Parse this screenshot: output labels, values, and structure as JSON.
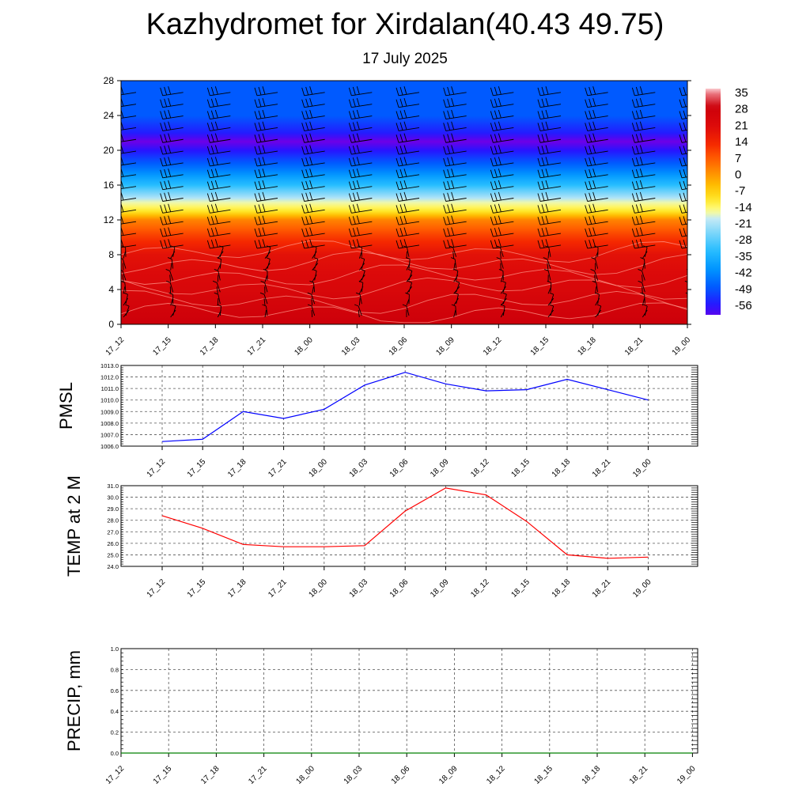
{
  "header": {
    "title": "Kazhydromet for Xirdalan(40.43 49.75)",
    "subtitle": "17 July 2025"
  },
  "chart_data": [
    {
      "type": "heatmap",
      "title": "Kazhydromet for Xirdalan(40.43 49.75)",
      "subtitle": "17 July 2025",
      "x": [
        "17_12",
        "17_15",
        "17_18",
        "17_21",
        "18_00",
        "18_03",
        "18_06",
        "18_09",
        "18_12",
        "18_15",
        "18_18",
        "18_21",
        "19_00"
      ],
      "yticks": [
        0,
        4,
        8,
        12,
        16,
        20,
        24,
        28
      ],
      "ylim": [
        0,
        28
      ],
      "value_profile": {
        "heights": [
          0,
          4,
          8,
          10,
          12,
          13,
          14,
          16,
          18,
          20,
          21,
          22,
          24,
          28
        ],
        "temps": [
          30,
          24,
          20,
          12,
          3,
          -10,
          -16,
          -32,
          -45,
          -56,
          -62,
          -55,
          -48,
          -48
        ]
      },
      "colorbar": {
        "labels": [
          "35",
          "28",
          "21",
          "14",
          "7",
          "0",
          "-7",
          "-14",
          "-21",
          "-28",
          "-35",
          "-42",
          "-49",
          "-56"
        ],
        "range": [
          -60,
          38
        ]
      },
      "wind_barbs": true
    },
    {
      "type": "line",
      "ylabel": "PMSL",
      "x": [
        "17_12",
        "17_15",
        "17_18",
        "17_21",
        "18_00",
        "18_03",
        "18_06",
        "18_09",
        "18_12",
        "18_15",
        "18_18",
        "18_21",
        "19_00"
      ],
      "values": [
        1006.4,
        1006.6,
        1009.0,
        1008.4,
        1009.2,
        1011.3,
        1012.4,
        1011.4,
        1010.8,
        1010.9,
        1011.8,
        1010.9,
        1010.0
      ],
      "ylim": [
        1006.0,
        1013.0
      ],
      "yticks": [
        "1006.0",
        "1007.0",
        "1008.0",
        "1009.0",
        "1010.0",
        "1011.0",
        "1012.0",
        "1013.0"
      ],
      "color": "#0000ff",
      "grid": true
    },
    {
      "type": "line",
      "ylabel": "TEMP at 2 M",
      "x": [
        "17_12",
        "17_15",
        "17_18",
        "17_21",
        "18_00",
        "18_03",
        "18_06",
        "18_09",
        "18_12",
        "18_15",
        "18_18",
        "18_21",
        "19_00"
      ],
      "values": [
        28.4,
        27.3,
        25.9,
        25.7,
        25.7,
        25.8,
        28.8,
        30.8,
        30.2,
        27.9,
        25.0,
        24.7,
        24.8
      ],
      "ylim": [
        24.0,
        31.0
      ],
      "yticks": [
        "24.0",
        "25.0",
        "26.0",
        "27.0",
        "28.0",
        "29.0",
        "30.0",
        "31.0"
      ],
      "color": "#ff0000",
      "grid": true
    },
    {
      "type": "line",
      "ylabel": "PRECIP, mm",
      "x": [
        "17_12",
        "17_15",
        "17_18",
        "17_21",
        "18_00",
        "18_03",
        "18_06",
        "18_09",
        "18_12",
        "18_15",
        "18_18",
        "18_21",
        "19_00"
      ],
      "values": [
        0,
        0,
        0,
        0,
        0,
        0,
        0,
        0,
        0,
        0,
        0,
        0,
        0
      ],
      "ylim": [
        0,
        1.0
      ],
      "yticks": [
        "0.0",
        "0.2",
        "0.4",
        "0.6",
        "0.8",
        "1.0"
      ],
      "color": "#008000",
      "grid": true
    }
  ]
}
